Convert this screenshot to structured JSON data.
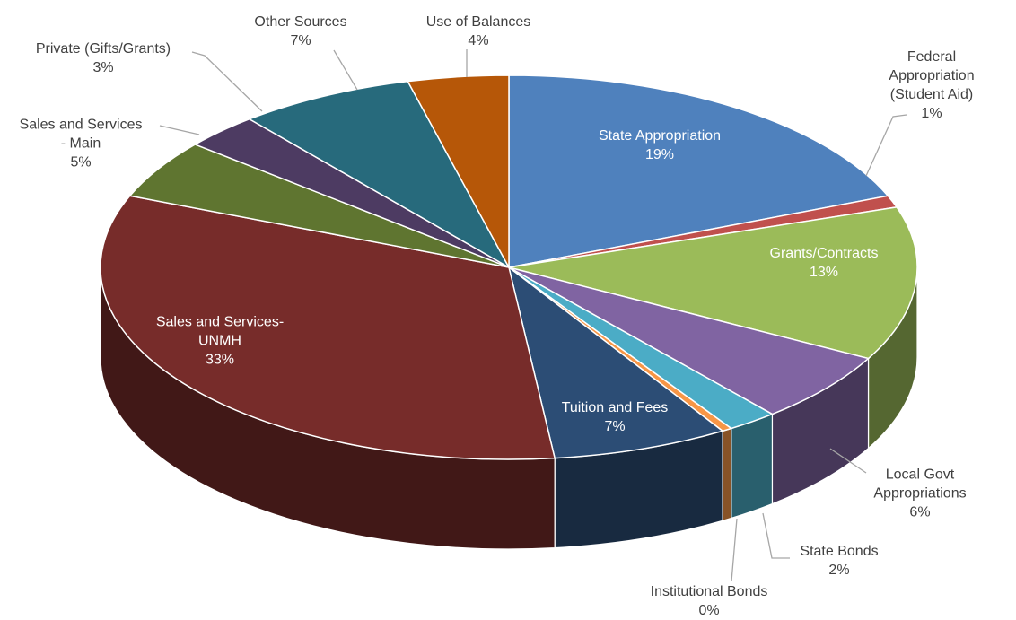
{
  "chart_data": {
    "type": "pie",
    "categories": [
      "State Appropriation",
      "Federal Appropriation\n(Student Aid)",
      "Grants/Contracts",
      "Local Govt\nAppropriations",
      "State Bonds",
      "Institutional Bonds",
      "Tuition and Fees",
      "Sales and Services-\nUNMH",
      "Sales and Services\n- Main",
      "Private (Gifts/Grants)",
      "Other Sources",
      "Use of Balances"
    ],
    "values": [
      19,
      1,
      13,
      6,
      2,
      0.4,
      7,
      33,
      5,
      3,
      7,
      4
    ],
    "value_labels": [
      "19%",
      "1%",
      "13%",
      "6%",
      "2%",
      "0%",
      "7%",
      "33%",
      "5%",
      "3%",
      "7%",
      "4%"
    ],
    "colors": [
      "#4f81bd",
      "#c0504d",
      "#9bbb59",
      "#8064a2",
      "#4bacc6",
      "#f79646",
      "#2c4d75",
      "#772c2a",
      "#5f7530",
      "#4d3b62",
      "#276a7c",
      "#b65708"
    ]
  }
}
